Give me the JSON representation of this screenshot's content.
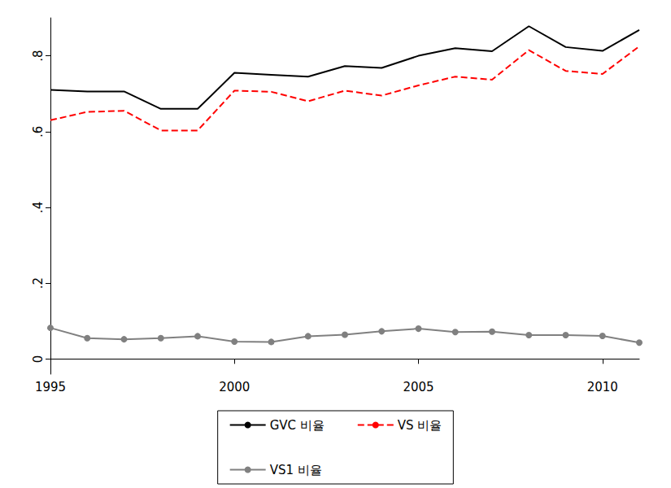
{
  "chart_data": {
    "type": "line",
    "x": [
      1995,
      1996,
      1997,
      1998,
      1999,
      2000,
      2001,
      2002,
      2003,
      2004,
      2005,
      2006,
      2007,
      2008,
      2009,
      2010,
      2011
    ],
    "series": [
      {
        "name": "GVC 비율",
        "color": "#000000",
        "line_style": "solid",
        "marker": "none",
        "values": [
          0.71,
          0.706,
          0.706,
          0.66,
          0.66,
          0.755,
          0.75,
          0.745,
          0.773,
          0.768,
          0.8,
          0.82,
          0.812,
          0.878,
          0.823,
          0.813,
          0.868
        ]
      },
      {
        "name": "VS 비율",
        "color": "#ff0000",
        "line_style": "dashed",
        "marker": "none",
        "values": [
          0.63,
          0.652,
          0.655,
          0.603,
          0.603,
          0.708,
          0.705,
          0.68,
          0.708,
          0.695,
          0.722,
          0.745,
          0.737,
          0.815,
          0.76,
          0.752,
          0.825
        ]
      },
      {
        "name": "VS1 비율",
        "color": "#808080",
        "line_style": "solid",
        "marker": "circle",
        "values": [
          0.082,
          0.055,
          0.052,
          0.055,
          0.06,
          0.046,
          0.045,
          0.06,
          0.064,
          0.073,
          0.08,
          0.071,
          0.072,
          0.063,
          0.063,
          0.061,
          0.043
        ]
      }
    ],
    "xlim": [
      1995,
      2011
    ],
    "xticks": [
      1995,
      2000,
      2005,
      2010
    ],
    "ylim": [
      -0.04,
      0.9
    ],
    "yticks": [
      0,
      {
        "value": 0.2,
        "label": ".2"
      },
      {
        "value": 0.4,
        "label": ".4"
      },
      {
        "value": 0.6,
        "label": ".6"
      },
      {
        "value": 0.8,
        "label": ".8"
      }
    ],
    "grid": false,
    "legend": "bottom"
  }
}
